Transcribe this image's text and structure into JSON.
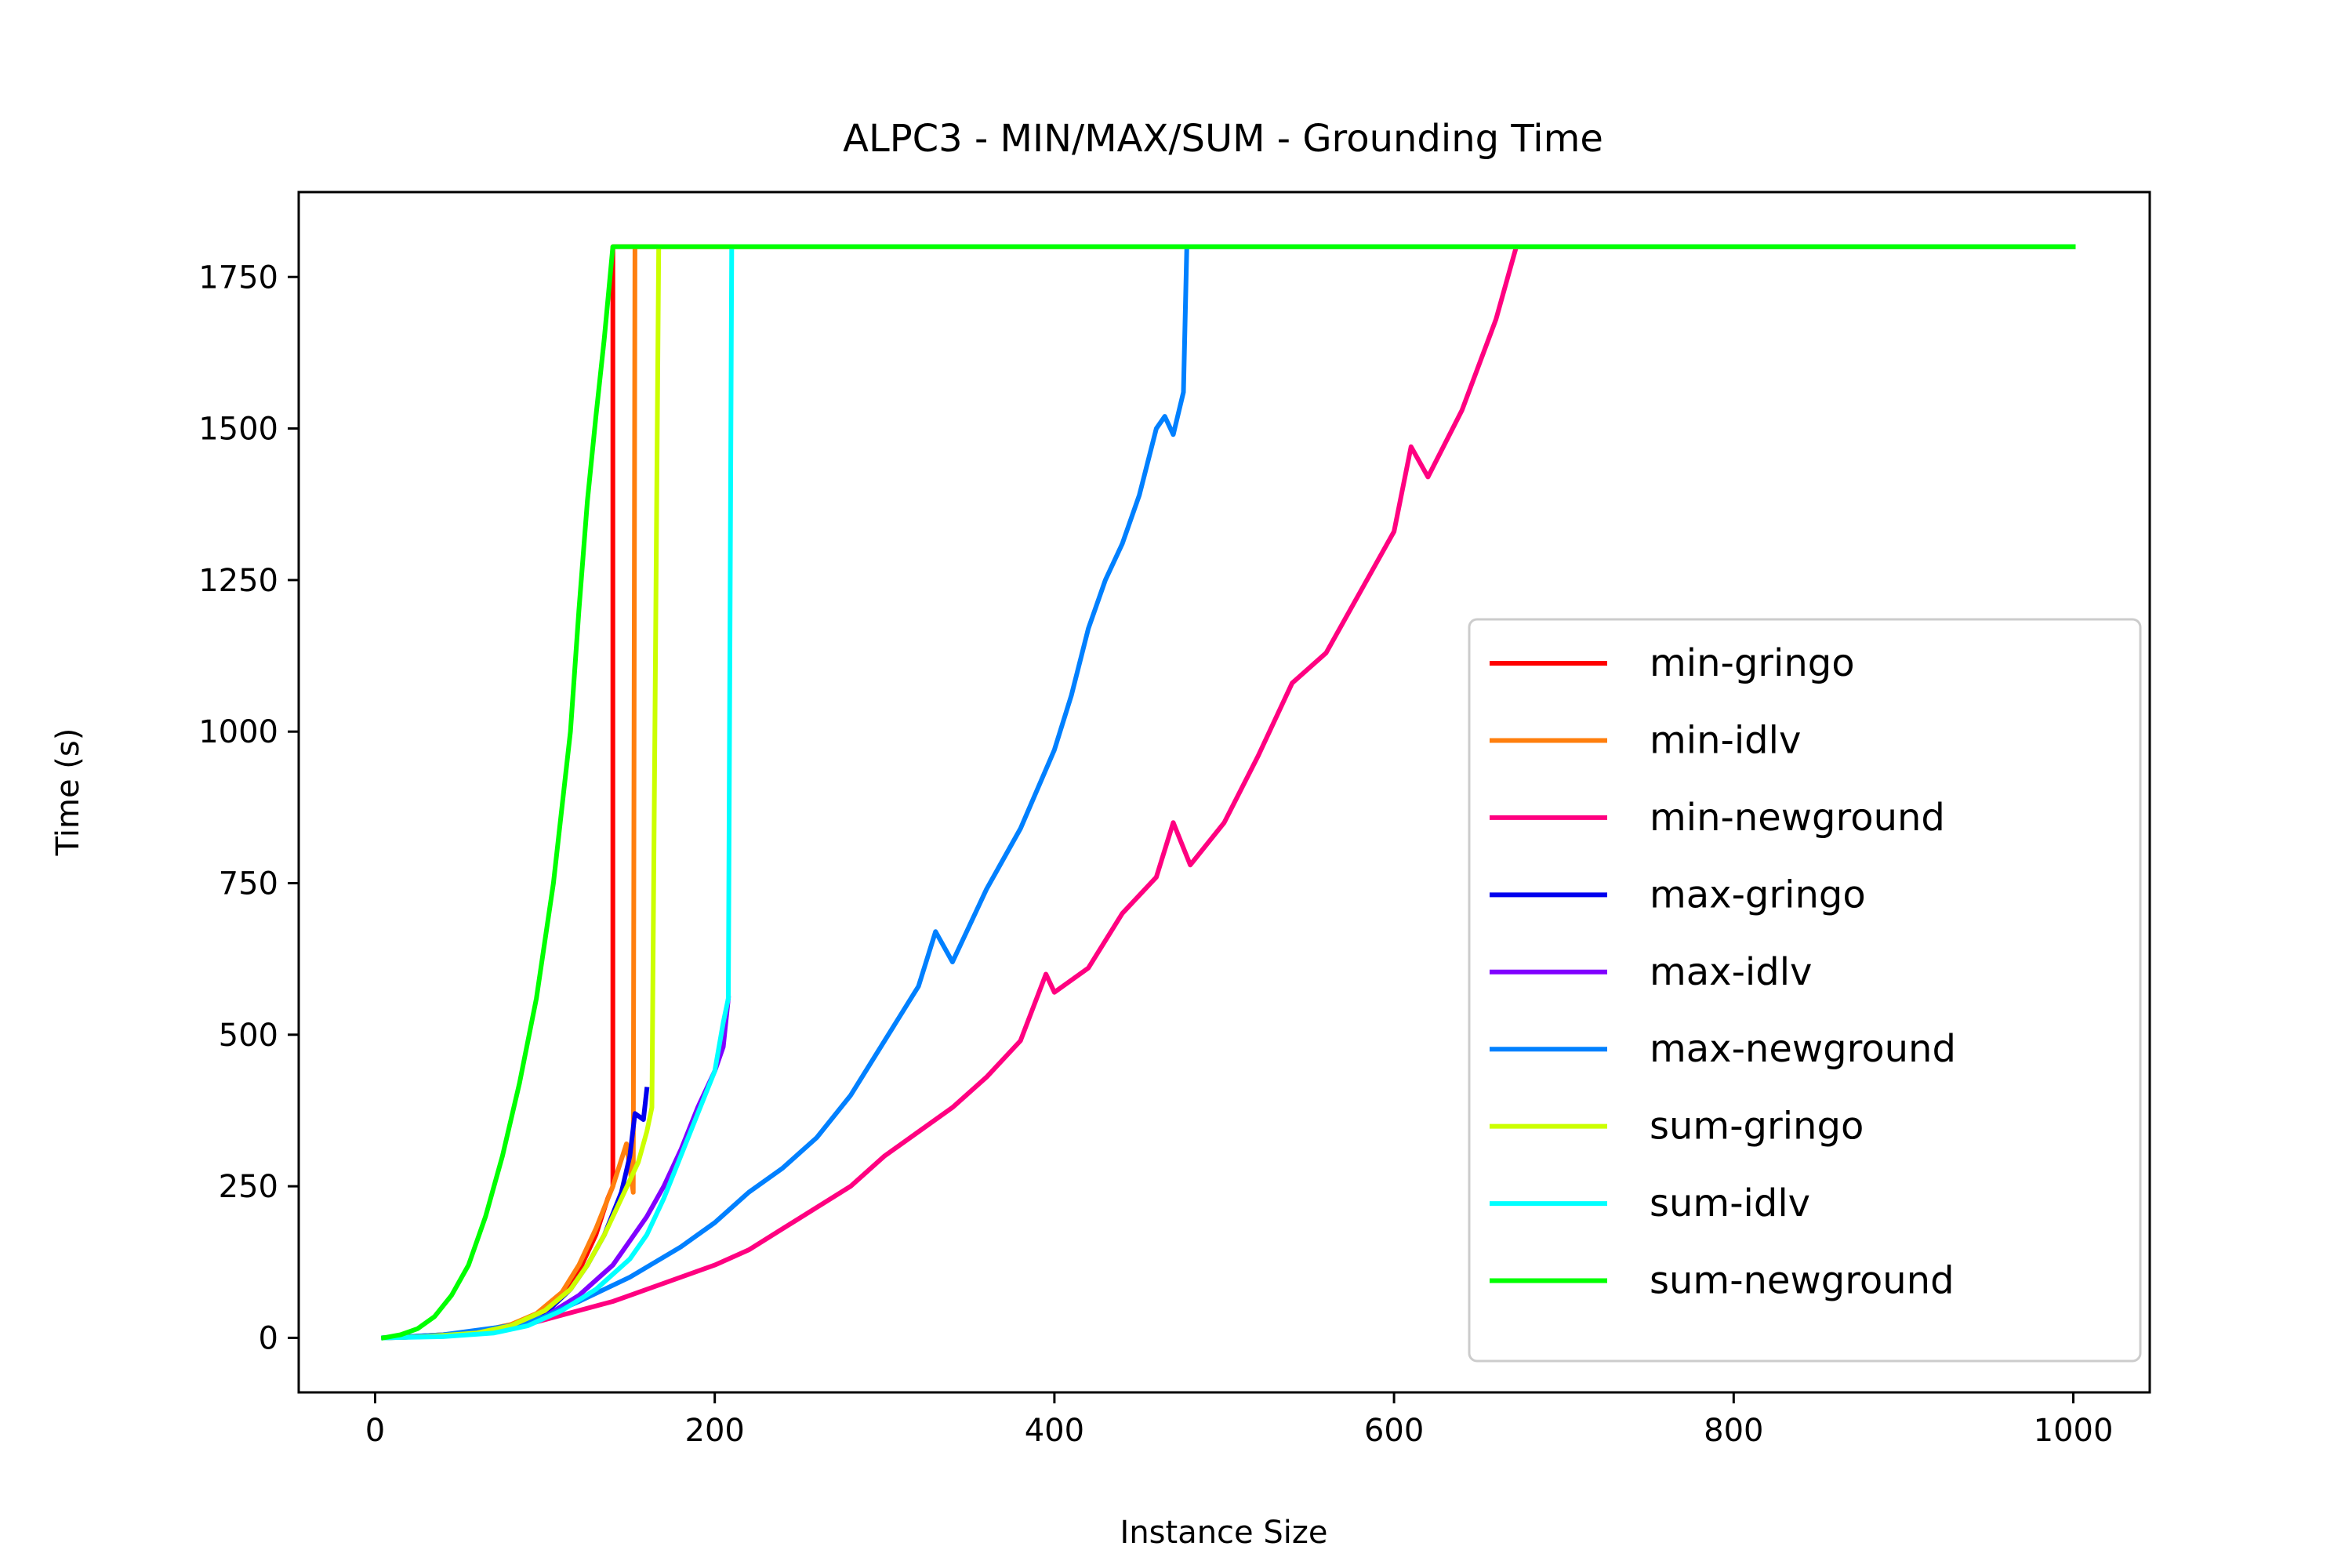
{
  "chart_data": {
    "type": "line",
    "title": "ALPC3 - MIN/MAX/SUM - Grounding Time",
    "xlabel": "Instance Size",
    "ylabel": "Time (s)",
    "xlim": [
      -45,
      1045
    ],
    "ylim": [
      -90,
      1890
    ],
    "xticks": [
      0,
      200,
      400,
      600,
      800,
      1000
    ],
    "yticks": [
      0,
      250,
      500,
      750,
      1000,
      1250,
      1500,
      1750
    ],
    "xtick_labels": [
      "0",
      "200",
      "400",
      "600",
      "800",
      "1000"
    ],
    "ytick_labels": [
      "0",
      "250",
      "500",
      "750",
      "1000",
      "1250",
      "1500",
      "1750"
    ],
    "grid": false,
    "legend_position": "lower-right",
    "series": [
      {
        "name": "min-gringo",
        "color": "#ff0000",
        "points": [
          [
            5,
            0
          ],
          [
            20,
            2
          ],
          [
            40,
            5
          ],
          [
            60,
            10
          ],
          [
            80,
            20
          ],
          [
            95,
            35
          ],
          [
            110,
            70
          ],
          [
            120,
            110
          ],
          [
            130,
            170
          ],
          [
            137,
            230
          ],
          [
            140,
            250
          ],
          [
            140,
            1800
          ],
          [
            1000,
            1800
          ]
        ]
      },
      {
        "name": "min-idlv",
        "color": "#ff7f0e",
        "points": [
          [
            5,
            0
          ],
          [
            20,
            2
          ],
          [
            40,
            5
          ],
          [
            60,
            10
          ],
          [
            80,
            22
          ],
          [
            95,
            40
          ],
          [
            110,
            75
          ],
          [
            120,
            120
          ],
          [
            130,
            180
          ],
          [
            140,
            250
          ],
          [
            148,
            320
          ],
          [
            152,
            240
          ],
          [
            153,
            1800
          ],
          [
            1000,
            1800
          ]
        ]
      },
      {
        "name": "min-newground",
        "color": "#ff0080",
        "points": [
          [
            5,
            0
          ],
          [
            40,
            3
          ],
          [
            80,
            15
          ],
          [
            100,
            30
          ],
          [
            120,
            45
          ],
          [
            140,
            60
          ],
          [
            160,
            80
          ],
          [
            180,
            100
          ],
          [
            200,
            120
          ],
          [
            220,
            145
          ],
          [
            240,
            180
          ],
          [
            260,
            215
          ],
          [
            280,
            250
          ],
          [
            300,
            300
          ],
          [
            320,
            340
          ],
          [
            340,
            380
          ],
          [
            360,
            430
          ],
          [
            380,
            490
          ],
          [
            395,
            600
          ],
          [
            400,
            570
          ],
          [
            420,
            610
          ],
          [
            440,
            700
          ],
          [
            460,
            760
          ],
          [
            470,
            850
          ],
          [
            480,
            780
          ],
          [
            500,
            850
          ],
          [
            520,
            960
          ],
          [
            540,
            1080
          ],
          [
            560,
            1130
          ],
          [
            580,
            1230
          ],
          [
            600,
            1330
          ],
          [
            610,
            1470
          ],
          [
            620,
            1420
          ],
          [
            640,
            1530
          ],
          [
            660,
            1680
          ],
          [
            672,
            1800
          ],
          [
            1000,
            1800
          ]
        ]
      },
      {
        "name": "max-gringo",
        "color": "#0000ee",
        "points": [
          [
            5,
            0
          ],
          [
            30,
            2
          ],
          [
            60,
            10
          ],
          [
            80,
            20
          ],
          [
            100,
            40
          ],
          [
            115,
            80
          ],
          [
            125,
            120
          ],
          [
            135,
            170
          ],
          [
            145,
            240
          ],
          [
            150,
            300
          ],
          [
            153,
            370
          ],
          [
            158,
            360
          ],
          [
            160,
            410
          ]
        ]
      },
      {
        "name": "max-idlv",
        "color": "#8000ff",
        "points": [
          [
            5,
            0
          ],
          [
            40,
            3
          ],
          [
            80,
            15
          ],
          [
            100,
            35
          ],
          [
            120,
            70
          ],
          [
            140,
            120
          ],
          [
            150,
            160
          ],
          [
            160,
            200
          ],
          [
            170,
            250
          ],
          [
            180,
            310
          ],
          [
            190,
            380
          ],
          [
            200,
            440
          ],
          [
            205,
            480
          ],
          [
            208,
            560
          ]
        ]
      },
      {
        "name": "max-newground",
        "color": "#0080ff",
        "points": [
          [
            5,
            0
          ],
          [
            40,
            5
          ],
          [
            80,
            20
          ],
          [
            100,
            35
          ],
          [
            120,
            60
          ],
          [
            150,
            100
          ],
          [
            180,
            150
          ],
          [
            200,
            190
          ],
          [
            220,
            240
          ],
          [
            240,
            280
          ],
          [
            260,
            330
          ],
          [
            280,
            400
          ],
          [
            300,
            490
          ],
          [
            320,
            580
          ],
          [
            330,
            670
          ],
          [
            340,
            620
          ],
          [
            360,
            740
          ],
          [
            380,
            840
          ],
          [
            400,
            970
          ],
          [
            410,
            1060
          ],
          [
            420,
            1170
          ],
          [
            430,
            1250
          ],
          [
            440,
            1310
          ],
          [
            450,
            1390
          ],
          [
            460,
            1500
          ],
          [
            465,
            1520
          ],
          [
            470,
            1490
          ],
          [
            476,
            1560
          ],
          [
            478,
            1800
          ],
          [
            1000,
            1800
          ]
        ]
      },
      {
        "name": "sum-gringo",
        "color": "#ccff00",
        "points": [
          [
            5,
            0
          ],
          [
            30,
            2
          ],
          [
            60,
            8
          ],
          [
            80,
            20
          ],
          [
            100,
            45
          ],
          [
            115,
            80
          ],
          [
            125,
            120
          ],
          [
            135,
            170
          ],
          [
            145,
            230
          ],
          [
            155,
            290
          ],
          [
            160,
            340
          ],
          [
            163,
            380
          ],
          [
            167,
            1800
          ],
          [
            1000,
            1800
          ]
        ]
      },
      {
        "name": "sum-idlv",
        "color": "#00ffff",
        "points": [
          [
            5,
            0
          ],
          [
            40,
            2
          ],
          [
            70,
            8
          ],
          [
            90,
            20
          ],
          [
            110,
            45
          ],
          [
            130,
            80
          ],
          [
            150,
            130
          ],
          [
            160,
            170
          ],
          [
            170,
            230
          ],
          [
            180,
            300
          ],
          [
            190,
            370
          ],
          [
            200,
            440
          ],
          [
            205,
            520
          ],
          [
            208,
            560
          ],
          [
            210,
            1800
          ],
          [
            1000,
            1800
          ]
        ]
      },
      {
        "name": "sum-newground",
        "color": "#00ff00",
        "points": [
          [
            5,
            0
          ],
          [
            15,
            5
          ],
          [
            25,
            15
          ],
          [
            35,
            35
          ],
          [
            45,
            70
          ],
          [
            55,
            120
          ],
          [
            65,
            200
          ],
          [
            75,
            300
          ],
          [
            85,
            420
          ],
          [
            95,
            560
          ],
          [
            105,
            750
          ],
          [
            115,
            1000
          ],
          [
            120,
            1200
          ],
          [
            125,
            1380
          ],
          [
            130,
            1520
          ],
          [
            135,
            1650
          ],
          [
            140,
            1800
          ],
          [
            1000,
            1800
          ]
        ]
      }
    ]
  }
}
